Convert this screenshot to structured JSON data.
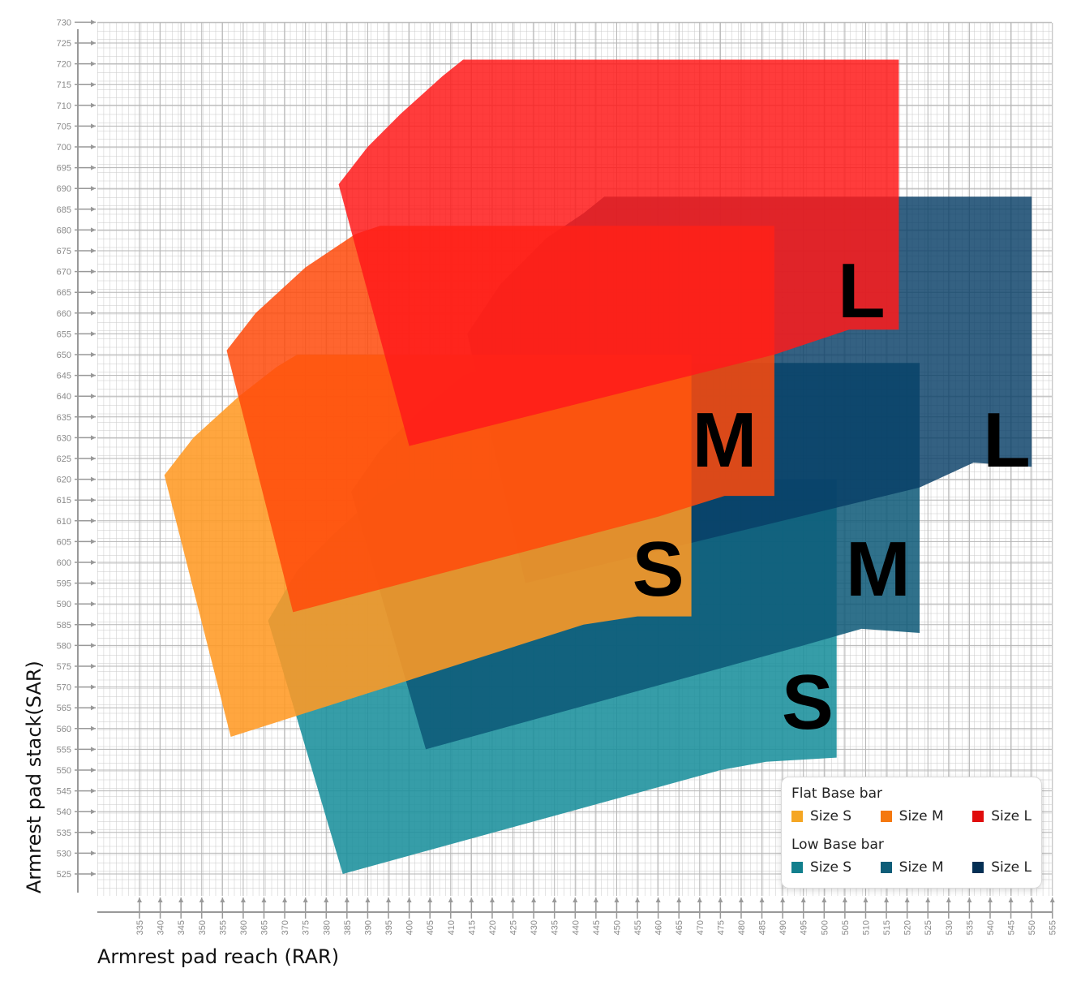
{
  "chart_data": {
    "type": "area",
    "xlabel": "Armrest pad reach (RAR)",
    "ylabel": "Armrest pad stack(SAR)",
    "xlim": [
      327,
      555
    ],
    "ylim": [
      520,
      730
    ],
    "x_ticks": [
      335,
      340,
      345,
      350,
      355,
      360,
      365,
      370,
      375,
      380,
      385,
      390,
      395,
      400,
      405,
      410,
      415,
      420,
      425,
      430,
      435,
      440,
      445,
      450,
      455,
      460,
      465,
      470,
      475,
      480,
      485,
      490,
      495,
      500,
      505,
      510,
      515,
      520,
      525,
      530,
      535,
      540,
      545,
      550,
      555
    ],
    "y_ticks": [
      525,
      530,
      535,
      540,
      545,
      550,
      555,
      560,
      565,
      570,
      575,
      580,
      585,
      590,
      595,
      600,
      605,
      610,
      615,
      620,
      625,
      630,
      635,
      640,
      645,
      650,
      655,
      660,
      665,
      670,
      675,
      680,
      685,
      690,
      695,
      700,
      705,
      710,
      715,
      720,
      725,
      730
    ],
    "grid": true,
    "legend": {
      "position": "bottom-right",
      "groups": [
        {
          "title": "Flat Base bar",
          "items": [
            {
              "label": "Size S",
              "color": "#f5a623"
            },
            {
              "label": "Size M",
              "color": "#f5780f"
            },
            {
              "label": "Size L",
              "color": "#e00c0c"
            }
          ]
        },
        {
          "title": "Low Base bar",
          "items": [
            {
              "label": "Size S",
              "color": "#127f8d"
            },
            {
              "label": "Size M",
              "color": "#0e5d78"
            },
            {
              "label": "Size L",
              "color": "#042f54"
            }
          ]
        }
      ]
    },
    "series": [
      {
        "name": "Low Base bar Size S",
        "color": "#1a8f9c",
        "opacity": 0.88,
        "label": "S",
        "points": [
          [
            366,
            586
          ],
          [
            373,
            598
          ],
          [
            382,
            607
          ],
          [
            393,
            617
          ],
          [
            398,
            620
          ],
          [
            503,
            620
          ],
          [
            503,
            553
          ],
          [
            486,
            552
          ],
          [
            475,
            550
          ],
          [
            384,
            525
          ]
        ],
        "label_at": [
          496,
          560
        ]
      },
      {
        "name": "Low Base bar Size M",
        "color": "#0c5877",
        "opacity": 0.85,
        "label": "M",
        "points": [
          [
            386,
            617
          ],
          [
            393,
            627
          ],
          [
            402,
            636
          ],
          [
            413,
            645
          ],
          [
            422,
            648
          ],
          [
            523,
            648
          ],
          [
            523,
            583
          ],
          [
            509,
            584
          ],
          [
            495,
            580
          ],
          [
            404,
            555
          ]
        ],
        "label_at": [
          513,
          592
        ]
      },
      {
        "name": "Low Base bar Size L",
        "color": "#073e66",
        "opacity": 0.82,
        "label": "L",
        "points": [
          [
            414,
            655
          ],
          [
            422,
            667
          ],
          [
            433,
            678
          ],
          [
            442,
            684
          ],
          [
            447,
            688
          ],
          [
            550,
            688
          ],
          [
            550,
            623
          ],
          [
            536,
            624
          ],
          [
            523,
            618
          ],
          [
            428,
            595
          ]
        ],
        "label_at": [
          544,
          623
        ]
      },
      {
        "name": "Flat Base bar Size S",
        "color": "#ff9a24",
        "opacity": 0.88,
        "label": "S",
        "points": [
          [
            341,
            621
          ],
          [
            348,
            630
          ],
          [
            359,
            640
          ],
          [
            368,
            647
          ],
          [
            373,
            650
          ],
          [
            468,
            650
          ],
          [
            468,
            587
          ],
          [
            455,
            587
          ],
          [
            442,
            585
          ],
          [
            357,
            558
          ]
        ],
        "label_at": [
          460,
          592
        ]
      },
      {
        "name": "Flat Base bar Size M",
        "color": "#ff4a0a",
        "opacity": 0.85,
        "label": "M",
        "points": [
          [
            356,
            651
          ],
          [
            363,
            660
          ],
          [
            375,
            671
          ],
          [
            387,
            679
          ],
          [
            393,
            681
          ],
          [
            488,
            681
          ],
          [
            488,
            616
          ],
          [
            476,
            616
          ],
          [
            460,
            611
          ],
          [
            372,
            588
          ]
        ],
        "label_at": [
          476,
          623
        ]
      },
      {
        "name": "Flat Base bar Size L",
        "color": "#ff1a1a",
        "opacity": 0.85,
        "label": "L",
        "points": [
          [
            383,
            691
          ],
          [
            390,
            700
          ],
          [
            398,
            708
          ],
          [
            408,
            717
          ],
          [
            413,
            721
          ],
          [
            518,
            721
          ],
          [
            518,
            656
          ],
          [
            506,
            656
          ],
          [
            488,
            650
          ],
          [
            400,
            628
          ]
        ],
        "label_at": [
          509,
          659
        ]
      }
    ]
  }
}
